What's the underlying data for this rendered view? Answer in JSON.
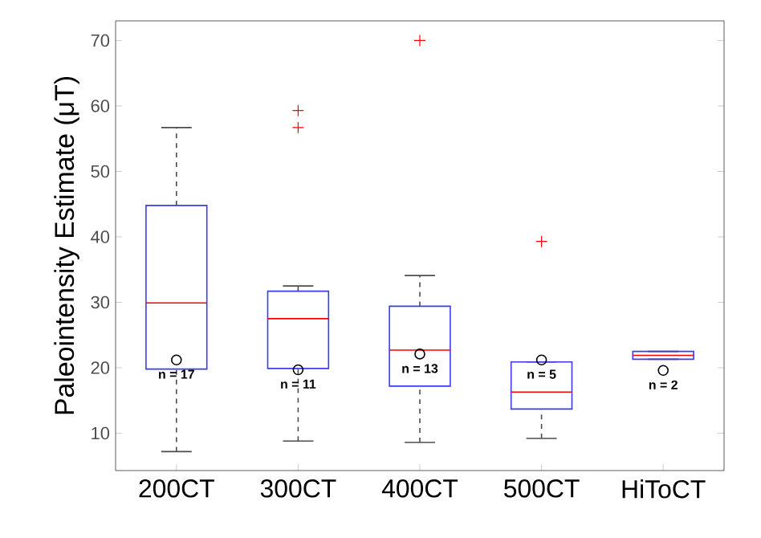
{
  "chart_data": {
    "type": "box",
    "ylabel": "Paleointensity Estimate (μT)",
    "categories": [
      "200CT",
      "300CT",
      "400CT",
      "500CT",
      "HiToCT"
    ],
    "ylim": [
      4.3,
      73
    ],
    "yticks": [
      10,
      20,
      30,
      40,
      50,
      60,
      70
    ],
    "series": [
      {
        "color": "#3b3bf0",
        "boxes": [
          {
            "low": 7.2,
            "q1": 19.8,
            "median": 29.9,
            "q3": 44.8,
            "high": 56.7
          },
          {
            "low": 8.8,
            "q1": 19.9,
            "median": 27.5,
            "q3": 31.7,
            "high": 32.5,
            "outliers": [
              59.3,
              56.7
            ]
          },
          {
            "low": 8.6,
            "q1": 17.2,
            "median": 22.7,
            "q3": 29.4,
            "high": 34.1,
            "outliers": [
              70
            ]
          },
          {
            "low": 9.2,
            "q1": 13.7,
            "median": 16.3,
            "q3": 20.9,
            "high": 20.9,
            "outliers": [
              39.3
            ]
          },
          {
            "low": 21.3,
            "q1": 21.3,
            "median": 21.9,
            "q3": 22.5,
            "high": 22.5
          }
        ]
      },
      {
        "type": "scatter",
        "color": "#000000",
        "marker": "circle",
        "x": [
          "200CT",
          "300CT",
          "400CT",
          "500CT",
          "HiToCT"
        ],
        "values": [
          21.2,
          19.7,
          22.1,
          21.2,
          19.6
        ]
      }
    ],
    "annotations": [
      "n = 17",
      "n = 11",
      "n = 13",
      "n = 5",
      "n = 2"
    ]
  }
}
